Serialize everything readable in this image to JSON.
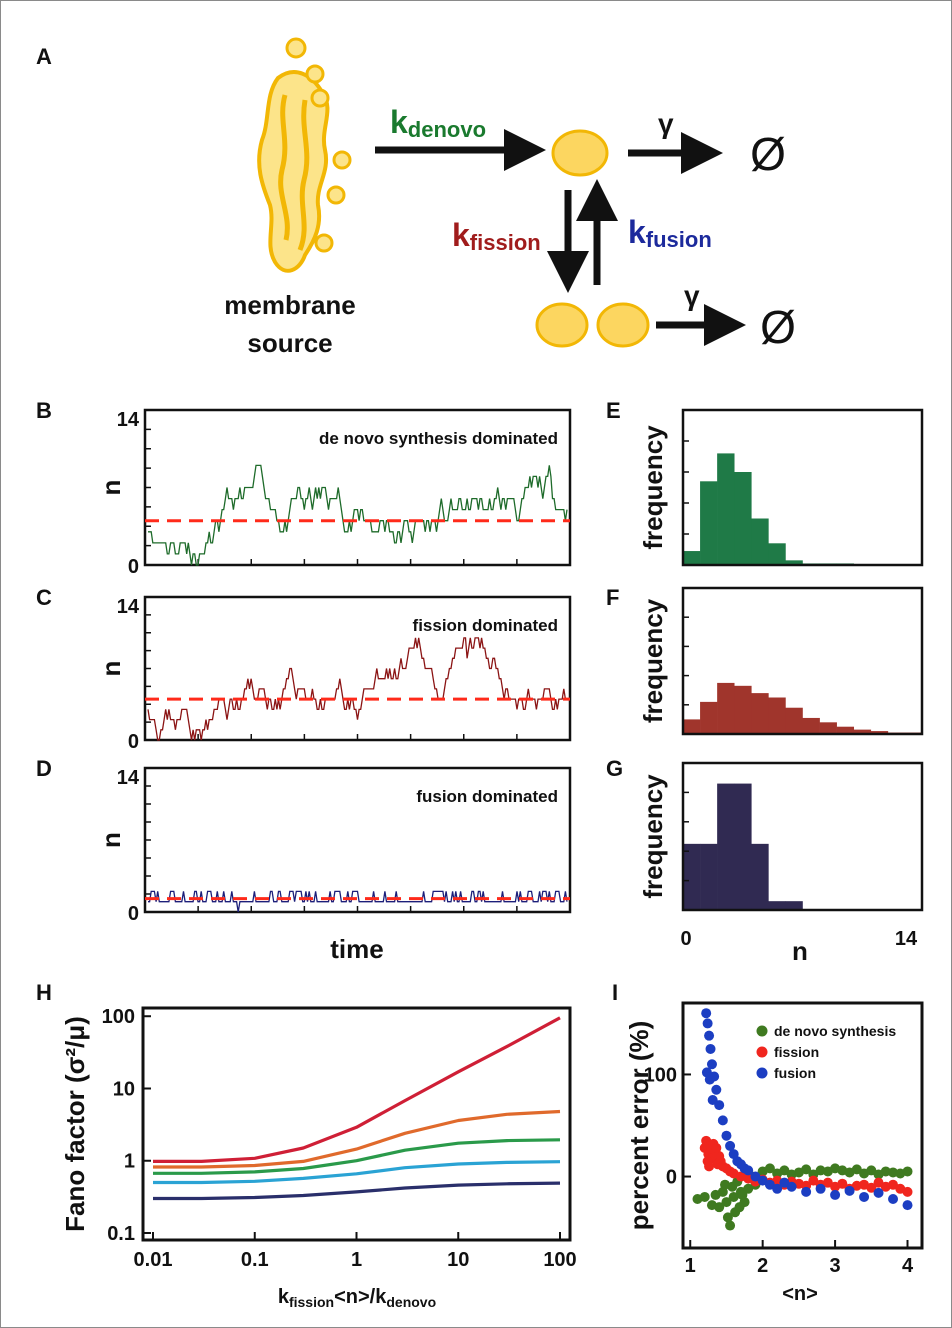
{
  "panels": [
    "A",
    "B",
    "C",
    "D",
    "E",
    "F",
    "G",
    "H",
    "I"
  ],
  "diagram": {
    "membrane_source_line1": "membrane",
    "membrane_source_line2": "source",
    "k_denovo_main": "k",
    "k_denovo_sub": "denovo",
    "k_fission_main": "k",
    "k_fission_sub": "fission",
    "k_fusion_main": "k",
    "k_fusion_sub": "fusion",
    "gamma": "γ",
    "empty_set": "Ø",
    "colors": {
      "denovo": "#1a7a2e",
      "fission": "#a01c1c",
      "fusion": "#1c2a9c",
      "vesicle": "#fcd660",
      "vesicle_edge": "#f2b705"
    }
  },
  "traces": {
    "ylabel": "n",
    "xlabel": "time",
    "ymax_label": "14",
    "ymin_label": "0",
    "ymax": 14,
    "items": [
      {
        "title": "de novo synthesis dominated",
        "color": "#1e6b2a",
        "mean": 4,
        "amp": 3.2,
        "seed": 11
      },
      {
        "title": "fission dominated",
        "color": "#8b1414",
        "mean": 4,
        "amp": 4.5,
        "seed": 23
      },
      {
        "title": "fusion dominated",
        "color": "#1c1f7a",
        "mean": 1.3,
        "amp": 0.9,
        "seed": 37
      }
    ]
  },
  "histograms": {
    "ylabel": "frequency",
    "xlabel": "n",
    "x_min_label": "0",
    "x_max_label": "14",
    "items": [
      {
        "color": "#1f7a47",
        "values": [
          0.09,
          0.54,
          0.72,
          0.6,
          0.3,
          0.14,
          0.03,
          0.01,
          0.01,
          0.01,
          0.005,
          0.005,
          0.0,
          0.0
        ]
      },
      {
        "color": "#a0352c",
        "values": [
          0.1,
          0.22,
          0.35,
          0.33,
          0.28,
          0.25,
          0.18,
          0.11,
          0.08,
          0.05,
          0.03,
          0.02,
          0.01,
          0.01
        ]
      },
      {
        "color": "#302a52",
        "values": [
          0.45,
          0.45,
          0.86,
          0.86,
          0.45,
          0.06,
          0.06,
          0.0,
          0.0,
          0.0,
          0.0,
          0.0,
          0.0,
          0.0
        ]
      }
    ]
  },
  "chart_data": [
    {
      "type": "line",
      "panel": "H",
      "xlabel_main": "k",
      "xlabel_sub1": "fission",
      "xlabel_mid": "<n>/k",
      "xlabel_sub2": "denovo",
      "ylabel": "Fano factor (σ²/μ)",
      "x_ticks": [
        "0.01",
        "0.1",
        "1",
        "10",
        "100"
      ],
      "y_ticks": [
        "0.1",
        "1",
        "10",
        "100"
      ],
      "xscale": "log",
      "yscale": "log",
      "xlim": [
        0.01,
        100
      ],
      "ylim": [
        0.08,
        130
      ],
      "x": [
        0.01,
        0.03,
        0.1,
        0.3,
        1,
        3,
        10,
        30,
        100
      ],
      "series": [
        {
          "color": "#cf1f36",
          "values": [
            0.98,
            0.98,
            1.08,
            1.5,
            2.9,
            6.8,
            17,
            38,
            95
          ]
        },
        {
          "color": "#e06a2c",
          "values": [
            0.82,
            0.82,
            0.86,
            0.98,
            1.45,
            2.4,
            3.6,
            4.4,
            4.8
          ]
        },
        {
          "color": "#2a9a4a",
          "values": [
            0.67,
            0.67,
            0.7,
            0.78,
            1.0,
            1.4,
            1.75,
            1.9,
            1.95
          ]
        },
        {
          "color": "#2aa3d4",
          "values": [
            0.5,
            0.5,
            0.52,
            0.57,
            0.66,
            0.8,
            0.9,
            0.95,
            0.97
          ]
        },
        {
          "color": "#2a2f6b",
          "values": [
            0.3,
            0.3,
            0.31,
            0.33,
            0.37,
            0.42,
            0.46,
            0.48,
            0.49
          ]
        }
      ]
    },
    {
      "type": "scatter",
      "panel": "I",
      "xlabel": "<n>",
      "ylabel": "percent error (%)",
      "x_ticks": [
        "1",
        "2",
        "3",
        "4"
      ],
      "y_ticks": [
        "100",
        "0"
      ],
      "xlim": [
        0.9,
        4.2
      ],
      "ylim": [
        -70,
        170
      ],
      "legend_position": "top-right",
      "series": [
        {
          "name": "de novo synthesis",
          "color": "#3f7a20",
          "points": [
            [
              1.1,
              -22
            ],
            [
              1.2,
              -20
            ],
            [
              1.3,
              -28
            ],
            [
              1.35,
              -18
            ],
            [
              1.4,
              -30
            ],
            [
              1.45,
              -15
            ],
            [
              1.5,
              -25
            ],
            [
              1.52,
              -40
            ],
            [
              1.55,
              -48
            ],
            [
              1.58,
              -10
            ],
            [
              1.6,
              -20
            ],
            [
              1.62,
              -35
            ],
            [
              1.65,
              -5
            ],
            [
              1.7,
              -15
            ],
            [
              1.75,
              -25
            ],
            [
              1.8,
              -12
            ],
            [
              1.85,
              0
            ],
            [
              1.9,
              -8
            ],
            [
              2.0,
              5
            ],
            [
              2.1,
              8
            ],
            [
              2.2,
              3
            ],
            [
              2.3,
              6
            ],
            [
              2.4,
              2
            ],
            [
              2.5,
              4
            ],
            [
              2.6,
              7
            ],
            [
              2.7,
              2
            ],
            [
              2.8,
              6
            ],
            [
              2.9,
              5
            ],
            [
              3.0,
              8
            ],
            [
              3.1,
              6
            ],
            [
              3.2,
              4
            ],
            [
              3.3,
              7
            ],
            [
              3.4,
              3
            ],
            [
              3.5,
              6
            ],
            [
              3.6,
              2
            ],
            [
              3.7,
              5
            ],
            [
              3.8,
              4
            ],
            [
              3.9,
              3
            ],
            [
              4.0,
              5
            ],
            [
              1.48,
              -8
            ],
            [
              1.68,
              -30
            ],
            [
              1.72,
              -18
            ]
          ]
        },
        {
          "name": "fission",
          "color": "#f0261e",
          "points": [
            [
              1.2,
              28
            ],
            [
              1.22,
              35
            ],
            [
              1.25,
              22
            ],
            [
              1.28,
              30
            ],
            [
              1.3,
              18
            ],
            [
              1.32,
              32
            ],
            [
              1.35,
              25
            ],
            [
              1.38,
              12
            ],
            [
              1.4,
              20
            ],
            [
              1.42,
              15
            ],
            [
              1.45,
              10
            ],
            [
              1.5,
              8
            ],
            [
              1.55,
              5
            ],
            [
              1.6,
              3
            ],
            [
              1.7,
              0
            ],
            [
              1.8,
              -2
            ],
            [
              1.9,
              -5
            ],
            [
              2.0,
              -3
            ],
            [
              2.1,
              -6
            ],
            [
              2.2,
              -4
            ],
            [
              2.3,
              -8
            ],
            [
              2.4,
              -5
            ],
            [
              2.5,
              -7
            ],
            [
              2.6,
              -9
            ],
            [
              2.7,
              -4
            ],
            [
              2.8,
              -8
            ],
            [
              2.9,
              -6
            ],
            [
              3.0,
              -10
            ],
            [
              3.1,
              -7
            ],
            [
              3.2,
              -12
            ],
            [
              3.3,
              -9
            ],
            [
              3.4,
              -8
            ],
            [
              3.5,
              -11
            ],
            [
              3.6,
              -6
            ],
            [
              3.7,
              -10
            ],
            [
              3.8,
              -8
            ],
            [
              3.9,
              -12
            ],
            [
              4.0,
              -15
            ],
            [
              1.24,
              15
            ],
            [
              1.36,
              28
            ],
            [
              1.26,
              10
            ]
          ]
        },
        {
          "name": "fusion",
          "color": "#1c3ec2",
          "points": [
            [
              1.22,
              160
            ],
            [
              1.24,
              150
            ],
            [
              1.26,
              138
            ],
            [
              1.28,
              125
            ],
            [
              1.3,
              110
            ],
            [
              1.33,
              98
            ],
            [
              1.36,
              85
            ],
            [
              1.4,
              70
            ],
            [
              1.45,
              55
            ],
            [
              1.5,
              40
            ],
            [
              1.55,
              30
            ],
            [
              1.6,
              22
            ],
            [
              1.7,
              12
            ],
            [
              1.8,
              6
            ],
            [
              1.9,
              0
            ],
            [
              2.0,
              -4
            ],
            [
              2.1,
              -8
            ],
            [
              2.2,
              -12
            ],
            [
              2.3,
              -6
            ],
            [
              2.4,
              -10
            ],
            [
              2.6,
              -15
            ],
            [
              2.8,
              -12
            ],
            [
              3.0,
              -18
            ],
            [
              3.2,
              -14
            ],
            [
              3.4,
              -20
            ],
            [
              3.6,
              -16
            ],
            [
              3.8,
              -22
            ],
            [
              4.0,
              -28
            ],
            [
              1.27,
              95
            ],
            [
              1.31,
              75
            ],
            [
              1.23,
              102
            ],
            [
              1.65,
              15
            ],
            [
              1.75,
              8
            ]
          ]
        }
      ]
    }
  ]
}
